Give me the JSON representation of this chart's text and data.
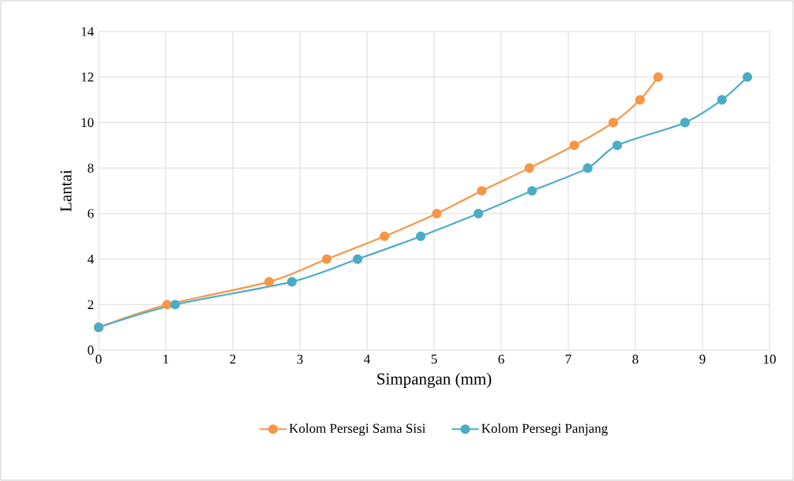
{
  "chart_data": {
    "type": "line",
    "xlabel": "Simpangan (mm)",
    "ylabel": "Lantai",
    "xlim": [
      0,
      10
    ],
    "xticks": [
      0,
      1,
      2,
      3,
      4,
      5,
      6,
      7,
      8,
      9,
      10
    ],
    "ylim": [
      0,
      14
    ],
    "yticks": [
      0,
      2,
      4,
      6,
      8,
      10,
      12,
      14
    ],
    "grid": true,
    "legend": "bottom",
    "marker": "circle",
    "line_style": "solid",
    "series": [
      {
        "name": "Kolom Persegi Sama Sisi",
        "color": "#f79646",
        "x": [
          0,
          1.02,
          2.54,
          3.4,
          4.26,
          5.04,
          5.71,
          6.42,
          7.09,
          7.67,
          8.07,
          8.34
        ],
        "values": [
          1,
          2,
          3,
          4,
          5,
          6,
          7,
          8,
          9,
          10,
          11,
          12
        ]
      },
      {
        "name": "Kolom Persegi Panjang",
        "color": "#4bacc6",
        "x": [
          0,
          1.14,
          2.88,
          3.86,
          4.8,
          5.66,
          6.46,
          7.29,
          7.73,
          8.74,
          9.29,
          9.67
        ],
        "values": [
          1,
          2,
          3,
          4,
          5,
          6,
          7,
          8,
          9,
          10,
          11,
          12
        ]
      }
    ]
  }
}
